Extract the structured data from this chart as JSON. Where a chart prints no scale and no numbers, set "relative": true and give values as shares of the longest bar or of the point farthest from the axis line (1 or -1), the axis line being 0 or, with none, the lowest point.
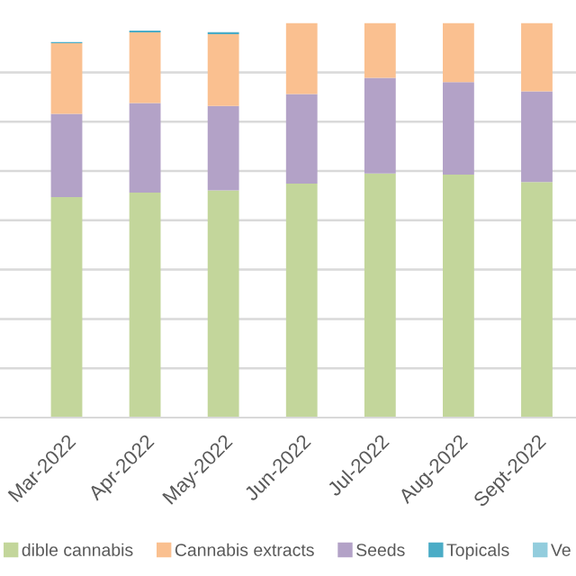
{
  "chart_data": {
    "type": "bar",
    "stacked": true,
    "relative": true,
    "grid": "y",
    "legend": "bottom",
    "categories": [
      "Mar-2022",
      "Apr-2022",
      "May-2022",
      "Jun-2022",
      "Jul-2022",
      "Aug-2022",
      "Sept-2022"
    ],
    "series": [
      {
        "name": "dible cannabis",
        "color": "#c3d69b",
        "values": [
          0.559,
          0.57,
          0.576,
          0.593,
          0.619,
          0.616,
          0.597
        ]
      },
      {
        "name": "Cannabis extracts",
        "color": "#fac090",
        "values": [
          0.179,
          0.179,
          0.182,
          0.18,
          0.139,
          0.15,
          0.173
        ]
      },
      {
        "name": "Seeds",
        "color": "#b3a2c7",
        "values": [
          0.211,
          0.227,
          0.214,
          0.227,
          0.242,
          0.234,
          0.23
        ]
      },
      {
        "name": "Topicals",
        "color": "#4bacc6",
        "values": [
          0.003,
          0.005,
          0.005,
          null,
          null,
          null,
          null
        ]
      },
      {
        "name": "Ve",
        "color": "#93cddd",
        "values": [
          null,
          null,
          null,
          null,
          null,
          null,
          null
        ]
      }
    ]
  }
}
